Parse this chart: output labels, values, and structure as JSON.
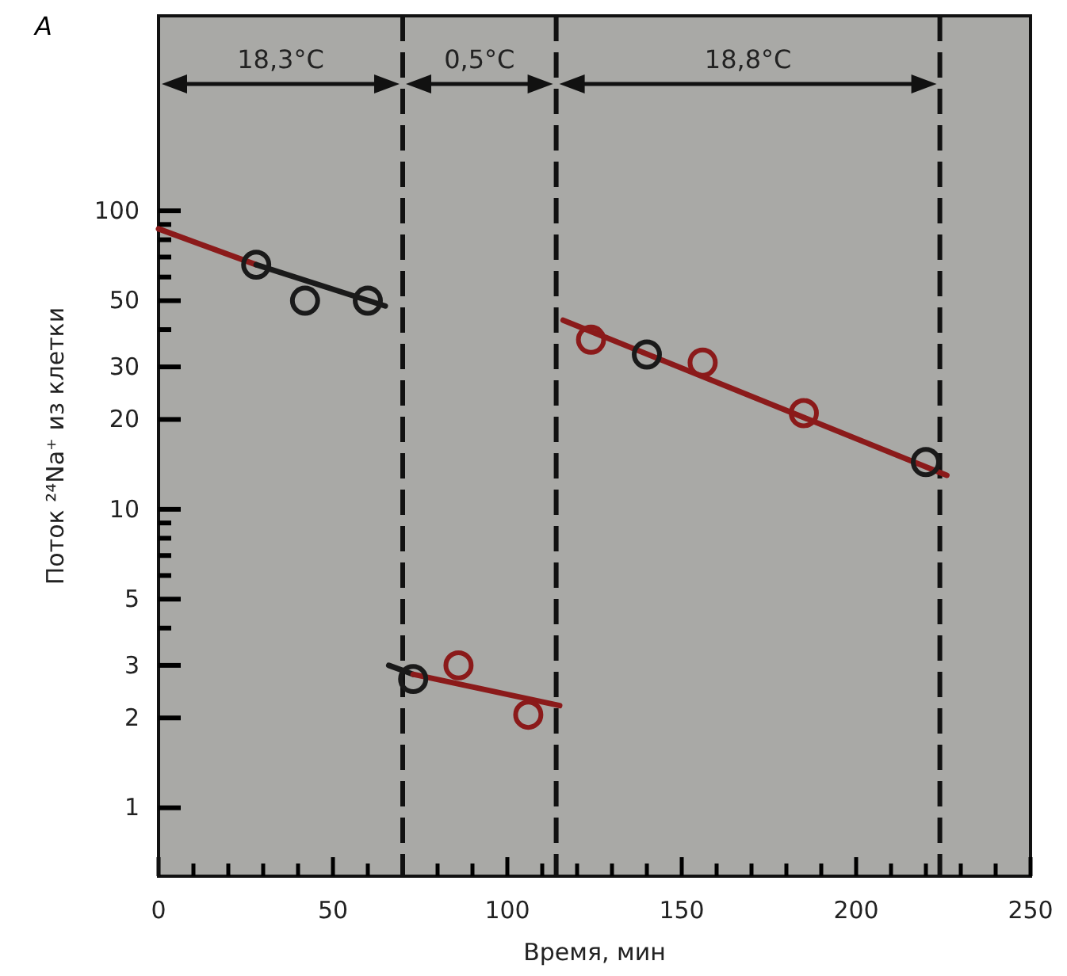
{
  "chart_data": {
    "type": "scatter",
    "xlabel": "Время, мин",
    "ylabel": "Поток ²⁴Na⁺ из клетки",
    "annotations": [
      "A",
      "18,3°C",
      "0,5°C",
      "18,8°C"
    ],
    "log": "y",
    "marker": "circle",
    "grid": false,
    "xlim": [
      0,
      250
    ],
    "ylim": [
      0.59,
      450
    ],
    "xticks": [
      0,
      {
        "value": 10,
        "label": null
      },
      {
        "value": 20,
        "label": null
      },
      {
        "value": 30,
        "label": null
      },
      {
        "value": 40,
        "label": null
      },
      50,
      {
        "value": 60,
        "label": null
      },
      {
        "value": 70,
        "label": null
      },
      {
        "value": 80,
        "label": null
      },
      {
        "value": 90,
        "label": null
      },
      100,
      {
        "value": 110,
        "label": null
      },
      {
        "value": 120,
        "label": null
      },
      {
        "value": 130,
        "label": null
      },
      {
        "value": 140,
        "label": null
      },
      150,
      {
        "value": 160,
        "label": null
      },
      {
        "value": 170,
        "label": null
      },
      {
        "value": 180,
        "label": null
      },
      {
        "value": 190,
        "label": null
      },
      200,
      {
        "value": 210,
        "label": null
      },
      {
        "value": 220,
        "label": null
      },
      {
        "value": 230,
        "label": null
      },
      {
        "value": 240,
        "label": null
      },
      250
    ],
    "yticks": [
      1,
      2,
      3,
      {
        "value": 4,
        "label": null
      },
      5,
      {
        "value": 6,
        "label": null
      },
      {
        "value": 7,
        "label": null
      },
      {
        "value": 8,
        "label": null
      },
      {
        "value": 9,
        "label": null
      },
      10,
      20,
      30,
      {
        "value": 40,
        "label": null
      },
      50,
      {
        "value": 60,
        "label": null
      },
      {
        "value": 70,
        "label": null
      },
      {
        "value": 80,
        "label": null
      },
      {
        "value": 90,
        "label": null
      },
      100
    ],
    "ref_lines": [
      {
        "axis": "x",
        "value": 70,
        "line_style": "dashed",
        "color": "#111111"
      },
      {
        "axis": "x",
        "value": 114,
        "line_style": "dashed",
        "color": "#111111"
      },
      {
        "axis": "x",
        "value": 224,
        "line_style": "dashed",
        "color": "#111111"
      }
    ],
    "series": [
      {
        "x": [
          28,
          42,
          60
        ],
        "values": [
          66,
          50,
          50
        ],
        "colors": [
          "#1a1a1a",
          "#1a1a1a",
          "#1a1a1a"
        ]
      },
      {
        "x": [
          73,
          86,
          106
        ],
        "values": [
          2.7,
          3.0,
          2.05
        ],
        "colors": [
          "#1a1a1a",
          "#8b1a1a",
          "#8b1a1a"
        ]
      },
      {
        "x": [
          124,
          140,
          156,
          185,
          220
        ],
        "values": [
          37,
          33,
          31,
          21,
          14.4
        ],
        "colors": [
          "#8b1a1a",
          "#1a1a1a",
          "#8b1a1a",
          "#8b1a1a",
          "#1a1a1a"
        ]
      },
      {
        "type": "line",
        "x": [
          0,
          28
        ],
        "values": [
          87,
          66
        ],
        "color": "#8b1a1a",
        "marker": "none"
      },
      {
        "type": "line",
        "x": [
          28,
          65
        ],
        "values": [
          66,
          48
        ],
        "color": "#1a1a1a",
        "marker": "none"
      },
      {
        "type": "line",
        "x": [
          66,
          73
        ],
        "values": [
          3.0,
          2.8
        ],
        "color": "#1a1a1a",
        "marker": "none"
      },
      {
        "type": "line",
        "x": [
          73,
          115
        ],
        "values": [
          2.8,
          2.2
        ],
        "color": "#8b1a1a",
        "marker": "none"
      },
      {
        "type": "line",
        "x": [
          116,
          226
        ],
        "values": [
          43,
          13
        ],
        "color": "#8b1a1a",
        "marker": "none"
      }
    ]
  }
}
